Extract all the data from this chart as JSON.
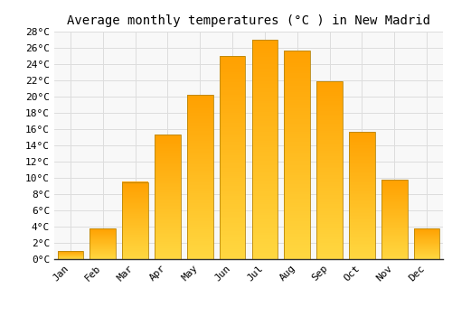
{
  "title": "Average monthly temperatures (°C ) in New Madrid",
  "months": [
    "Jan",
    "Feb",
    "Mar",
    "Apr",
    "May",
    "Jun",
    "Jul",
    "Aug",
    "Sep",
    "Oct",
    "Nov",
    "Dec"
  ],
  "values": [
    1.0,
    3.8,
    9.5,
    15.3,
    20.2,
    25.0,
    27.0,
    25.7,
    21.9,
    15.7,
    9.8,
    3.8
  ],
  "bar_color_bottom": "#FFD740",
  "bar_color_top": "#FFA000",
  "bar_edge_color": "#B8860B",
  "background_color": "#FFFFFF",
  "plot_bg_color": "#F8F8F8",
  "grid_color": "#DDDDDD",
  "ylim": [
    0,
    28
  ],
  "ytick_step": 2,
  "title_fontsize": 10,
  "tick_fontsize": 8,
  "font_family": "monospace",
  "bar_width": 0.8
}
